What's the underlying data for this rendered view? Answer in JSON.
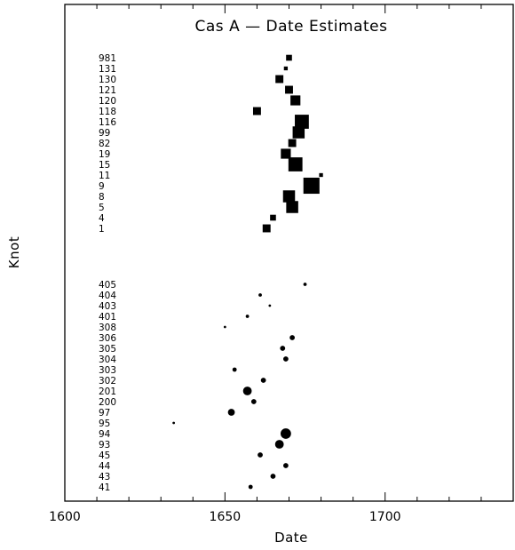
{
  "chart_data": {
    "type": "scatter",
    "title": "Cas A — Date Estimates",
    "xlabel": "Date",
    "ylabel": "Knot",
    "xlim": [
      1600,
      1740
    ],
    "x_ticks": [
      1600,
      1650,
      1700
    ],
    "grid": false,
    "legend": "none",
    "marker_color": "#000000",
    "series": [
      {
        "marker": "square",
        "knots": [
          "981",
          "131",
          "130",
          "121",
          "120",
          "118",
          "116",
          "99",
          "82",
          "19",
          "15",
          "11",
          "9",
          "8",
          "5",
          "4",
          "1"
        ],
        "x": [
          1670,
          1669,
          1667,
          1670,
          1672,
          1660,
          1674,
          1673,
          1671,
          1669,
          1672,
          1680,
          1677,
          1670,
          1671,
          1665,
          1663
        ],
        "marker_size": [
          2,
          1,
          3,
          3,
          4,
          3,
          6,
          5,
          3,
          4,
          6,
          1,
          7,
          5,
          5,
          2,
          3
        ]
      },
      {
        "marker": "circle",
        "knots": [
          "405",
          "404",
          "403",
          "401",
          "308",
          "306",
          "305",
          "304",
          "303",
          "302",
          "201",
          "200",
          "97",
          "95",
          "94",
          "93",
          "45",
          "44",
          "43",
          "41"
        ],
        "x": [
          1675,
          1661,
          1664,
          1657,
          1650,
          1671,
          1668,
          1669,
          1653,
          1662,
          1657,
          1659,
          1652,
          1634,
          1669,
          1667,
          1661,
          1669,
          1665,
          1658
        ],
        "marker_size": [
          1,
          1,
          0.5,
          1,
          0.5,
          2,
          2,
          2,
          1.5,
          2,
          4,
          2,
          3,
          0.5,
          5,
          4,
          2,
          2,
          2,
          1.5
        ]
      }
    ]
  }
}
